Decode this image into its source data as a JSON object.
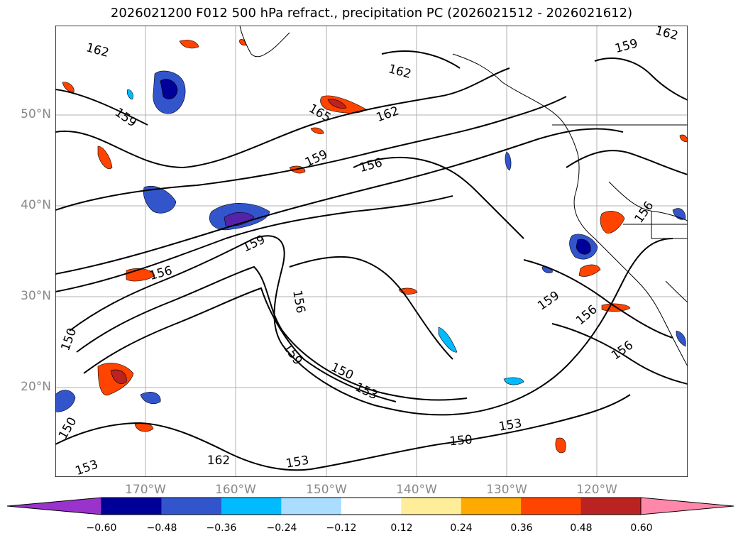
{
  "title": "2026021200 F012 500 hPa refract., precipitation PC (2026021512 - 2026021612)",
  "map": {
    "lat_labels": [
      "50°N",
      "40°N",
      "30°N",
      "20°N"
    ],
    "lon_labels": [
      "170°W",
      "160°W",
      "150°W",
      "140°W",
      "130°W",
      "120°W"
    ],
    "contour_labels": [
      "162",
      "159",
      "165",
      "162",
      "156",
      "159",
      "162",
      "159",
      "156",
      "159",
      "156",
      "150",
      "153",
      "150",
      "153",
      "150",
      "162",
      "153",
      "159",
      "156",
      "156",
      "150",
      "153",
      "162",
      "159",
      "156"
    ],
    "colors": {
      "contour": "#000000",
      "grid": "#b0b0b0",
      "coast": "#000000"
    }
  },
  "colorbar": {
    "ticks": [
      "−0.60",
      "−0.48",
      "−0.36",
      "−0.24",
      "−0.12",
      "0.12",
      "0.24",
      "0.36",
      "0.48",
      "0.60"
    ],
    "colors": [
      "#9933cc",
      "#000099",
      "#3355cc",
      "#00bbff",
      "#aaddff",
      "#ffffff",
      "#ffee99",
      "#ffaa00",
      "#ff4400",
      "#bb2222",
      "#ff88aa"
    ]
  }
}
